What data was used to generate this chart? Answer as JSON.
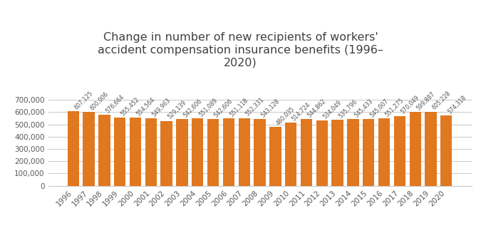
{
  "title": "Change in number of new recipients of workers'\naccident compensation insurance benefits (1996–\n2020)",
  "years": [
    1996,
    1997,
    1998,
    1999,
    2000,
    2001,
    2002,
    2003,
    2004,
    2005,
    2006,
    2007,
    2008,
    2009,
    2010,
    2011,
    2012,
    2013,
    2014,
    2015,
    2016,
    2017,
    2018,
    2019,
    2020
  ],
  "values": [
    607125,
    600006,
    576664,
    555452,
    554564,
    549963,
    529139,
    542606,
    551089,
    542606,
    551118,
    552331,
    543128,
    480035,
    514724,
    544862,
    534049,
    535796,
    545433,
    545007,
    551275,
    570049,
    599887,
    605228,
    574318
  ],
  "bar_color": "#E07820",
  "label_color": "#595959",
  "title_color": "#404040",
  "ylim": [
    0,
    700000
  ],
  "yticks": [
    0,
    100000,
    200000,
    300000,
    400000,
    500000,
    600000,
    700000
  ],
  "background_color": "#ffffff",
  "grid_color": "#c8c8c8",
  "title_fontsize": 11.5,
  "label_fontsize": 5.8,
  "tick_fontsize": 7.5
}
